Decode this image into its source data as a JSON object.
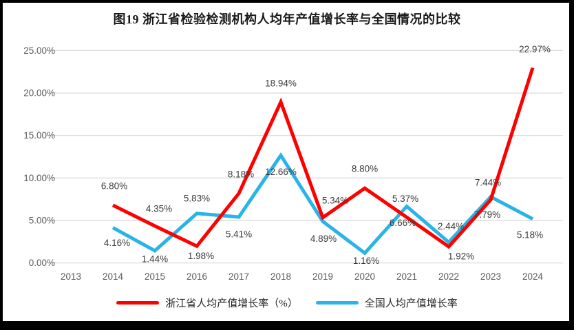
{
  "title": "图19  浙江省检验检测机构人均年产值增长率与全国情况的比较",
  "colors": {
    "zhejiang_red": "#FE0000",
    "national_blue": "#28B4E6",
    "gridline": "#D8D8D8",
    "axis_text": "#595959",
    "data_label": "#3B3B3B",
    "frame": "#000000"
  },
  "chart_data": {
    "type": "line",
    "title": "图19  浙江省检验检测机构人均年产值增长率与全国情况的比较",
    "categories": [
      "2013",
      "2014",
      "2015",
      "2016",
      "2017",
      "2018",
      "2019",
      "2020",
      "2021",
      "2022",
      "2023",
      "2024"
    ],
    "y_axis": {
      "min": 0,
      "max": 25,
      "step": 5,
      "tick_labels": [
        "0.00%",
        "5.00%",
        "10.00%",
        "15.00%",
        "20.00%",
        "25.00%"
      ]
    },
    "grid": true,
    "legend_position": "bottom",
    "value_suffix": "%",
    "series": [
      {
        "name": "浙江省人均产值增长率（%）",
        "color": "#FE0000",
        "values": [
          null,
          6.8,
          4.35,
          1.98,
          8.18,
          18.94,
          5.34,
          8.8,
          5.37,
          1.92,
          7.44,
          22.97
        ],
        "label_offsets": [
          null,
          [
            2,
            -28
          ],
          [
            6,
            -25
          ],
          [
            6,
            14
          ],
          [
            3,
            -28
          ],
          [
            0,
            -27
          ],
          [
            18,
            -25
          ],
          [
            0,
            -28
          ],
          [
            -2,
            -27
          ],
          [
            18,
            14
          ],
          [
            -4,
            -25
          ],
          [
            3,
            -27
          ]
        ]
      },
      {
        "name": "全国人均产值增长率",
        "color": "#28B4E6",
        "values": [
          null,
          4.16,
          1.44,
          5.83,
          5.41,
          12.66,
          4.89,
          1.16,
          6.66,
          2.44,
          7.79,
          5.18
        ],
        "label_offsets": [
          null,
          [
            6,
            22
          ],
          [
            0,
            12
          ],
          [
            0,
            -22
          ],
          [
            0,
            25
          ],
          [
            0,
            24
          ],
          [
            1,
            25
          ],
          [
            2,
            11
          ],
          [
            -6,
            24
          ],
          [
            3,
            -23
          ],
          [
            -5,
            26
          ],
          [
            -4,
            23
          ]
        ]
      }
    ]
  }
}
